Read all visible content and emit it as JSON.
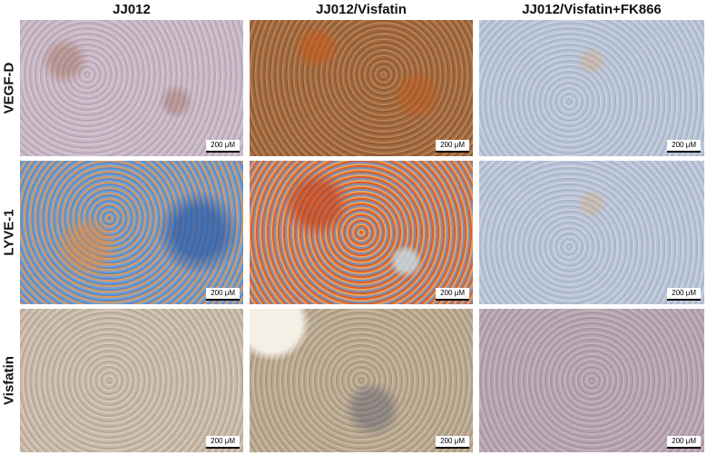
{
  "columns": [
    "JJ012",
    "JJ012/Visfatin",
    "JJ012/Visfatin+FK866"
  ],
  "rows": [
    "VEGF-D",
    "LYVE-1",
    "Visfatin"
  ],
  "scale_bar": "200 μM",
  "panels": [
    {
      "row": "VEGF-D",
      "column": "JJ012",
      "stain_color": "#c5b3c2"
    },
    {
      "row": "VEGF-D",
      "column": "JJ012/Visfatin",
      "stain_color": "#a87048"
    },
    {
      "row": "VEGF-D",
      "column": "JJ012/Visfatin+FK866",
      "stain_color": "#b6c0d2"
    },
    {
      "row": "LYVE-1",
      "column": "JJ012",
      "stain_color": "#6e9ccc"
    },
    {
      "row": "LYVE-1",
      "column": "JJ012/Visfatin",
      "stain_color": "#d07a44"
    },
    {
      "row": "LYVE-1",
      "column": "JJ012/Visfatin+FK866",
      "stain_color": "#b6c0d2"
    },
    {
      "row": "Visfatin",
      "column": "JJ012",
      "stain_color": "#c6b6a6"
    },
    {
      "row": "Visfatin",
      "column": "JJ012/Visfatin",
      "stain_color": "#b6a690"
    },
    {
      "row": "Visfatin",
      "column": "JJ012/Visfatin+FK866",
      "stain_color": "#b39fac"
    }
  ]
}
